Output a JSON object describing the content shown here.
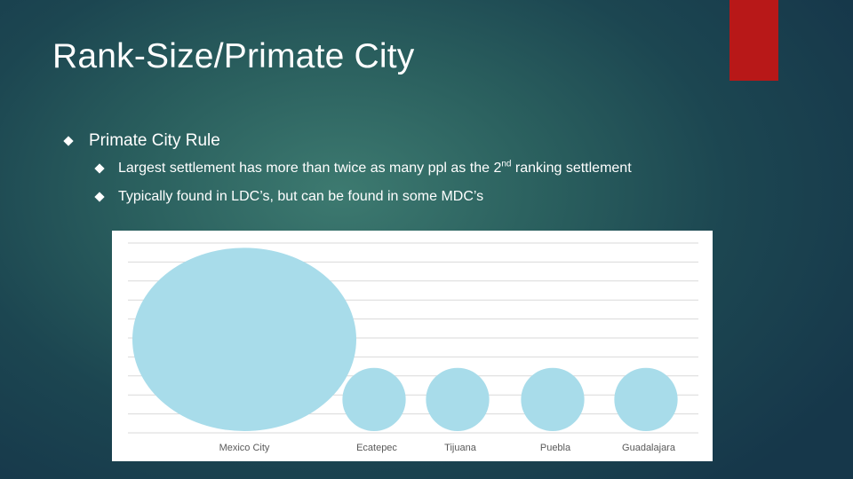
{
  "slide": {
    "title": "Rank-Size/Primate City",
    "bullets": [
      {
        "text": "Primate City Rule"
      }
    ],
    "sub_bullets": [
      {
        "before": "Largest settlement has more than twice as many ppl as the 2",
        "sup": "nd",
        "after": " ranking settlement"
      },
      {
        "text": "Typically found in LDC’s, but can be found in some MDC’s"
      }
    ],
    "accent_color": "#b81818"
  },
  "chart_data": {
    "type": "bubble",
    "categories": [
      "Mexico City",
      "Ecatepec",
      "Tijuana",
      "Puebla",
      "Guadalajara"
    ],
    "values": [
      20,
      1.6,
      1.6,
      1.6,
      1.6
    ],
    "bubble_color": "#a8dcea",
    "grid": true,
    "gridline_color": "#d9d9d9"
  }
}
